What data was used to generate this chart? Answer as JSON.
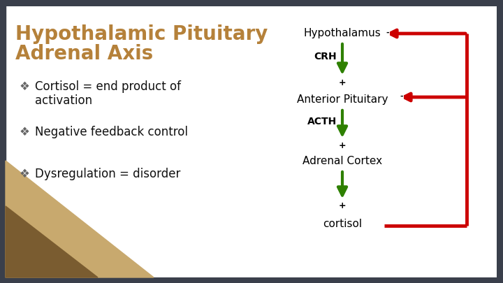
{
  "title_line1": "Hypothalamic Pituitary",
  "title_line2": "Adrenal Axis",
  "title_color": "#b5813a",
  "bg_color": "#f5f3ef",
  "dark_bg_color": "#3a3f4b",
  "slide_bg": "#ffffff",
  "bullet_points": [
    "Cortisol = end product of\nactivation",
    "Negative feedback control",
    "Dysregulation = disorder"
  ],
  "bullet_color": "#111111",
  "bullet_symbol": "❖",
  "diagram_labels": [
    "Hypothalamus",
    "Anterior Pituitary",
    "Adrenal Cortex",
    "cortisol"
  ],
  "diagram_hormones": [
    "CRH",
    "ACTH"
  ],
  "green_color": "#2e8000",
  "red_color": "#cc0000",
  "plus_label": "+",
  "minus_label": "-",
  "title_fontsize": 20,
  "bullet_fontsize": 12,
  "diag_label_fontsize": 11,
  "diag_hormone_fontsize": 10
}
